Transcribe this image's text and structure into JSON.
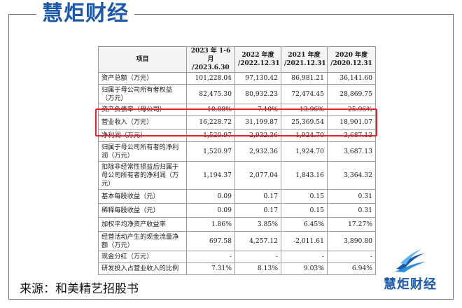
{
  "brand": {
    "name": "慧炬财经",
    "primary_color": "#1c57a8",
    "highlight_color": "#e8202a"
  },
  "table": {
    "headers": [
      {
        "line1": "项目",
        "line2": ""
      },
      {
        "line1": "2023 年 1-6 月",
        "line2": "/2023.6.30"
      },
      {
        "line1": "2022 年度",
        "line2": "/2022.12.31"
      },
      {
        "line1": "2021 年度",
        "line2": "/2021.12.31"
      },
      {
        "line1": "2020 年度",
        "line2": "/2020.12.31"
      }
    ],
    "rows": [
      {
        "label": "资产总额（万元）",
        "values": [
          "101,228.04",
          "97,130.42",
          "86,981.21",
          "36,141.60"
        ]
      },
      {
        "label": "归属于母公司所有者权益（万元）",
        "values": [
          "82,475.30",
          "80,932.23",
          "72,474.45",
          "28,869.75"
        ]
      },
      {
        "label": "资产负债率（母公司）",
        "values": [
          "10.88%",
          "7.10%",
          "13.96%",
          "25.96%"
        ]
      },
      {
        "label": "营业收入（万元）",
        "values": [
          "16,228.72",
          "31,199.87",
          "25,369.54",
          "18,901.07"
        ]
      },
      {
        "label": "净利润（万元）",
        "values": [
          "1,520.97",
          "2,932.36",
          "1,924.70",
          "3,687.13"
        ]
      },
      {
        "label": "归属于母公司所有者的净利润（万元）",
        "values": [
          "1,520.97",
          "2,932.36",
          "1,924.70",
          "3,687.13"
        ]
      },
      {
        "label": "扣除非经常性损益后归属于母公司所有者的净利润（万元）",
        "values": [
          "1,194.37",
          "2,077.04",
          "1,843.16",
          "3,364.32"
        ]
      },
      {
        "label": "基本每股收益（元）",
        "values": [
          "0.09",
          "0.17",
          "0.15",
          "0.31"
        ]
      },
      {
        "label": "稀释每股收益（元）",
        "values": [
          "0.09",
          "0.17",
          "0.15",
          "0.31"
        ]
      },
      {
        "label": "加权平均净资产收益率",
        "values": [
          "1.86%",
          "3.85%",
          "6.45%",
          "17.27%"
        ]
      },
      {
        "label": "经营活动产生的现金流量净额（万元）",
        "values": [
          "697.58",
          "4,257.12",
          "-2,011.61",
          "3,890.80"
        ]
      },
      {
        "label": "现金分红（万元）",
        "values": [
          "-",
          "-",
          "-",
          "-"
        ]
      },
      {
        "label": "研发投入占营业收入的比例",
        "values": [
          "7.31%",
          "8.13%",
          "9.03%",
          "6.94%"
        ]
      }
    ]
  },
  "source": "来源：和美精艺招股书",
  "logo": {
    "icon": "wave-logo-icon",
    "text": "慧炬财经"
  }
}
